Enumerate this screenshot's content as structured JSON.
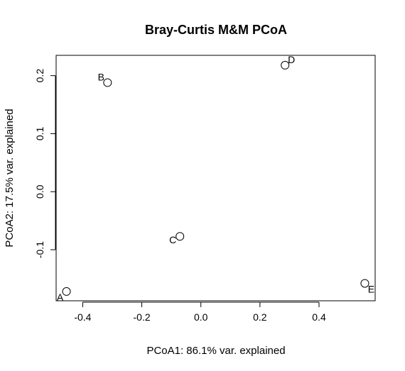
{
  "chart_data": {
    "type": "scatter",
    "title": "Bray-Curtis M&M PCoA",
    "xlabel": "PCoA1: 86.1% var. explained",
    "ylabel": "PCoA2: 17.5% var. explained",
    "xlim": [
      -0.49,
      0.59
    ],
    "ylim": [
      -0.188,
      0.235
    ],
    "x_ticks": [
      -0.4,
      -0.2,
      0.0,
      0.2,
      0.4
    ],
    "x_tick_labels": [
      "-0.4",
      "-0.2",
      "0.0",
      "0.2",
      "0.4"
    ],
    "y_ticks": [
      -0.1,
      0.0,
      0.1,
      0.2
    ],
    "y_tick_labels": [
      "-0.1",
      "0.0",
      "0.1",
      "0.2"
    ],
    "grid": false,
    "legend": "none",
    "points": [
      {
        "label": "A",
        "x": -0.455,
        "y": -0.172
      },
      {
        "label": "B",
        "x": -0.316,
        "y": 0.188
      },
      {
        "label": "C",
        "x": -0.071,
        "y": -0.077
      },
      {
        "label": "D",
        "x": 0.285,
        "y": 0.218
      },
      {
        "label": "E",
        "x": 0.555,
        "y": -0.158
      }
    ]
  }
}
